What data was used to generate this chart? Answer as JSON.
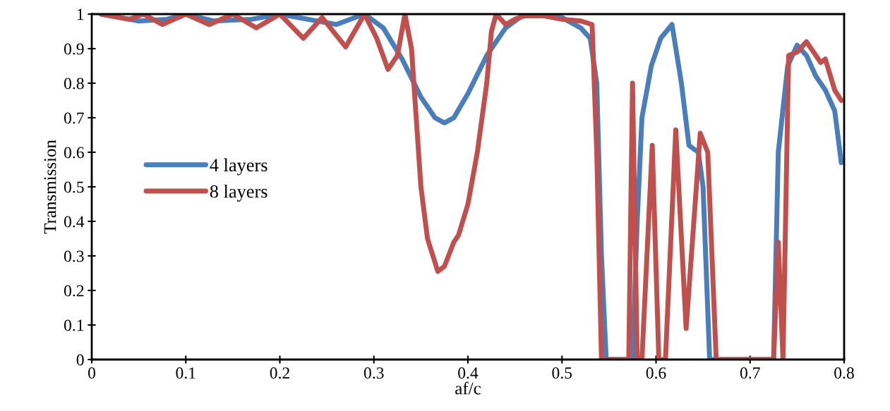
{
  "chart_data": {
    "type": "line",
    "xlabel": "af/c",
    "ylabel": "Transmission",
    "xlim": [
      0,
      0.8
    ],
    "xticks": [
      0,
      0.1,
      0.2,
      0.3,
      0.4,
      0.5,
      0.6,
      0.7,
      0.8
    ],
    "ylim": [
      0,
      1
    ],
    "yticks": [
      0,
      0.1,
      0.2,
      0.3,
      0.4,
      0.5,
      0.6,
      0.7,
      0.8,
      0.9,
      1
    ],
    "grid": false,
    "legend": "left",
    "marker": "none",
    "line_style": "solid",
    "series": [
      {
        "name": "4 layers",
        "color": "#4a7ebb",
        "x": [
          0.01,
          0.03,
          0.05,
          0.08,
          0.1,
          0.13,
          0.17,
          0.2,
          0.24,
          0.26,
          0.29,
          0.31,
          0.33,
          0.35,
          0.365,
          0.375,
          0.385,
          0.4,
          0.42,
          0.44,
          0.46,
          0.48,
          0.5,
          0.52,
          0.53,
          0.537,
          0.542,
          0.547,
          0.575,
          0.58,
          0.585,
          0.595,
          0.605,
          0.617,
          0.627,
          0.635,
          0.645,
          0.65,
          0.657,
          0.725,
          0.73,
          0.74,
          0.75,
          0.76,
          0.77,
          0.78,
          0.79,
          0.797
        ],
        "values": [
          1.0,
          0.99,
          0.98,
          0.985,
          1.0,
          0.98,
          0.985,
          1.0,
          0.98,
          0.97,
          1.0,
          0.96,
          0.87,
          0.76,
          0.7,
          0.685,
          0.7,
          0.77,
          0.88,
          0.96,
          1.0,
          1.0,
          0.99,
          0.96,
          0.93,
          0.8,
          0.3,
          0.0,
          0.0,
          0.4,
          0.7,
          0.85,
          0.93,
          0.97,
          0.8,
          0.62,
          0.6,
          0.5,
          0.0,
          0.0,
          0.6,
          0.85,
          0.91,
          0.88,
          0.82,
          0.78,
          0.72,
          0.57
        ]
      },
      {
        "name": "8 layers",
        "color": "#c0504d",
        "x": [
          0.01,
          0.03,
          0.04,
          0.055,
          0.075,
          0.1,
          0.125,
          0.15,
          0.175,
          0.2,
          0.225,
          0.245,
          0.27,
          0.29,
          0.303,
          0.315,
          0.325,
          0.333,
          0.34,
          0.345,
          0.35,
          0.357,
          0.368,
          0.375,
          0.385,
          0.39,
          0.4,
          0.41,
          0.42,
          0.425,
          0.43,
          0.44,
          0.45,
          0.46,
          0.48,
          0.5,
          0.52,
          0.532,
          0.537,
          0.542,
          0.571,
          0.575,
          0.58,
          0.585,
          0.596,
          0.603,
          0.61,
          0.621,
          0.632,
          0.647,
          0.655,
          0.664,
          0.725,
          0.73,
          0.735,
          0.741,
          0.75,
          0.76,
          0.77,
          0.775,
          0.78,
          0.79,
          0.797
        ],
        "values": [
          1.0,
          0.99,
          0.985,
          1.0,
          0.97,
          1.0,
          0.97,
          1.0,
          0.96,
          1.0,
          0.93,
          0.99,
          0.905,
          1.0,
          0.93,
          0.84,
          0.88,
          1.0,
          0.9,
          0.7,
          0.5,
          0.35,
          0.255,
          0.27,
          0.34,
          0.36,
          0.45,
          0.6,
          0.8,
          0.95,
          1.0,
          0.97,
          0.985,
          0.995,
          0.995,
          0.985,
          0.98,
          0.97,
          0.6,
          0.0,
          0.0,
          0.8,
          0.0,
          0.0,
          0.62,
          0.0,
          0.0,
          0.665,
          0.09,
          0.655,
          0.6,
          0.0,
          0.0,
          0.34,
          0.0,
          0.88,
          0.89,
          0.92,
          0.88,
          0.86,
          0.87,
          0.78,
          0.75
        ]
      }
    ]
  }
}
